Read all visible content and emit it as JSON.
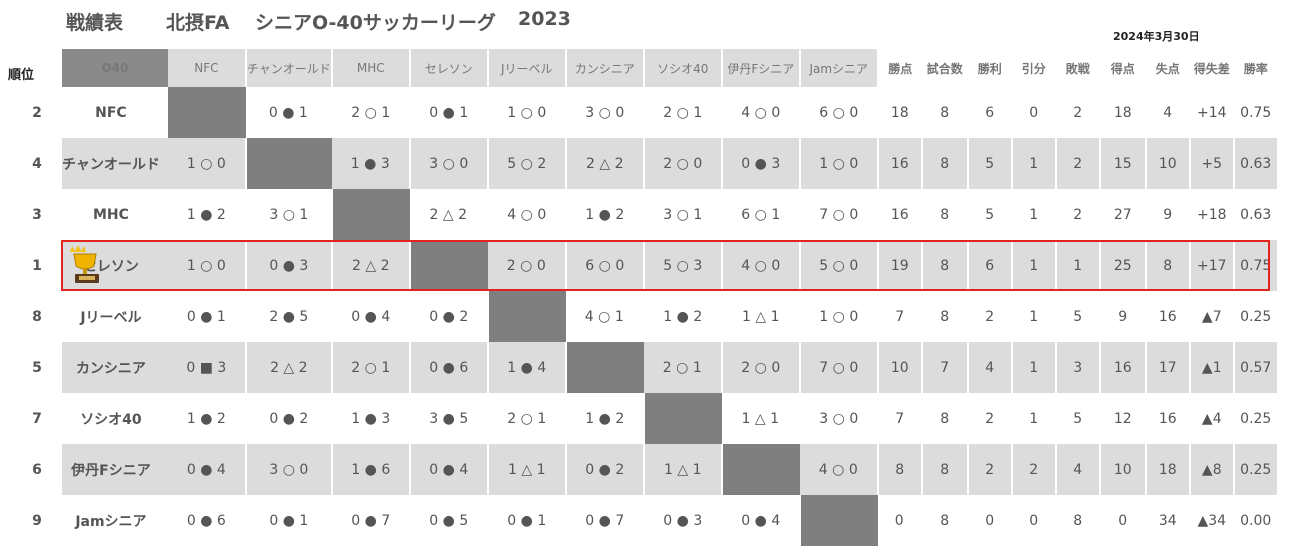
{
  "header": {
    "title": "戦績表",
    "org": "北摂FA",
    "league": "シニアO-40サッカーリーグ",
    "year": "2023",
    "date": "2024年3月30日",
    "rank_label": "順位",
    "corner_label": "O40"
  },
  "columns": {
    "teams": [
      "NFC",
      "チャンオールド",
      "MHC",
      "セレソン",
      "Jリーベル",
      "カンシニア",
      "ソシオ40",
      "伊丹Fシニア",
      "Jamシニア"
    ],
    "stats": [
      "勝点",
      "試合数",
      "勝利",
      "引分",
      "敗戦",
      "得点",
      "失点",
      "得失差",
      "勝率"
    ]
  },
  "rows": [
    {
      "rank": "2",
      "team": "NFC",
      "results": [
        "",
        "0 ● 1",
        "2 ○ 1",
        "0 ● 1",
        "1 ○ 0",
        "3 ○ 0",
        "2 ○ 1",
        "4 ○ 0",
        "6 ○ 0"
      ],
      "stats": [
        "18",
        "8",
        "6",
        "0",
        "2",
        "18",
        "4",
        "+14",
        "0.75"
      ]
    },
    {
      "rank": "4",
      "team": "チャンオールド",
      "results": [
        "1 ○ 0",
        "",
        "1 ● 3",
        "3 ○ 0",
        "5 ○ 2",
        "2 △ 2",
        "2 ○ 0",
        "0 ● 3",
        "1 ○ 0"
      ],
      "stats": [
        "16",
        "8",
        "5",
        "1",
        "2",
        "15",
        "10",
        "+5",
        "0.63"
      ]
    },
    {
      "rank": "3",
      "team": "MHC",
      "results": [
        "1 ● 2",
        "3 ○ 1",
        "",
        "2 △ 2",
        "4 ○ 0",
        "1 ● 2",
        "3 ○ 1",
        "6 ○ 1",
        "7 ○ 0"
      ],
      "stats": [
        "16",
        "8",
        "5",
        "1",
        "2",
        "27",
        "9",
        "+18",
        "0.63"
      ]
    },
    {
      "rank": "1",
      "team": "セレソン",
      "results": [
        "1 ○ 0",
        "0 ● 3",
        "2 △ 2",
        "",
        "2 ○ 0",
        "6 ○ 0",
        "5 ○ 3",
        "4 ○ 0",
        "5 ○ 0"
      ],
      "stats": [
        "19",
        "8",
        "6",
        "1",
        "1",
        "25",
        "8",
        "+17",
        "0.75"
      ]
    },
    {
      "rank": "8",
      "team": "Jリーベル",
      "results": [
        "0 ● 1",
        "2 ● 5",
        "0 ● 4",
        "0 ● 2",
        "",
        "4 ○ 1",
        "1 ● 2",
        "1 △ 1",
        "1 ○ 0"
      ],
      "stats": [
        "7",
        "8",
        "2",
        "1",
        "5",
        "9",
        "16",
        "▲7",
        "0.25"
      ]
    },
    {
      "rank": "5",
      "team": "カンシニア",
      "results": [
        "0 ■ 3",
        "2 △ 2",
        "2 ○ 1",
        "0 ● 6",
        "1 ● 4",
        "",
        "2 ○ 1",
        "2 ○ 0",
        "7 ○ 0"
      ],
      "stats": [
        "10",
        "7",
        "4",
        "1",
        "3",
        "16",
        "17",
        "▲1",
        "0.57"
      ]
    },
    {
      "rank": "7",
      "team": "ソシオ40",
      "results": [
        "1 ● 2",
        "0 ● 2",
        "1 ● 3",
        "3 ● 5",
        "2 ○ 1",
        "1 ● 2",
        "",
        "1 △ 1",
        "3 ○ 0"
      ],
      "stats": [
        "7",
        "8",
        "2",
        "1",
        "5",
        "12",
        "16",
        "▲4",
        "0.25"
      ]
    },
    {
      "rank": "6",
      "team": "伊丹Fシニア",
      "results": [
        "0 ● 4",
        "3 ○ 0",
        "1 ● 6",
        "0 ● 4",
        "1 △ 1",
        "0 ● 2",
        "1 △ 1",
        "",
        "4 ○ 0"
      ],
      "stats": [
        "8",
        "8",
        "2",
        "2",
        "4",
        "10",
        "18",
        "▲8",
        "0.25"
      ]
    },
    {
      "rank": "9",
      "team": "Jamシニア",
      "results": [
        "0 ● 6",
        "0 ● 1",
        "0 ● 7",
        "0 ● 5",
        "0 ● 1",
        "0 ● 7",
        "0 ● 3",
        "0 ● 4",
        ""
      ],
      "stats": [
        "0",
        "8",
        "0",
        "0",
        "8",
        "0",
        "34",
        "▲34",
        "0.00"
      ]
    }
  ],
  "highlight_team": "セレソン",
  "icons": {
    "winner": "trophy-icon"
  },
  "colors": {
    "highlight_border": "#e0251e",
    "self_cell": "#7f7f7f",
    "shade": "#dcdcdc",
    "negative": "#cc2222"
  }
}
